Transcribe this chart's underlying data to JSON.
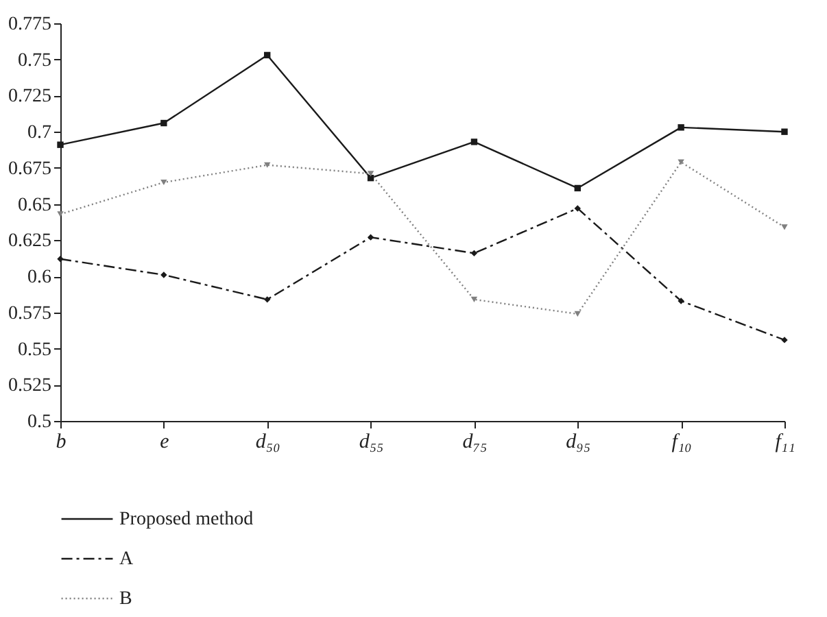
{
  "chart_data": {
    "type": "line",
    "categories": [
      "b",
      "e",
      "d₅₀",
      "d₅₅",
      "d₇₅",
      "d₉₅",
      "f₁₀",
      "f₁₁"
    ],
    "series": [
      {
        "name": "Proposed method",
        "color": "#1a1a1a",
        "values": [
          0.691,
          0.706,
          0.753,
          0.668,
          0.693,
          0.661,
          0.703,
          0.7
        ],
        "marker": "square",
        "line_style": "solid"
      },
      {
        "name": "A",
        "color": "#1a1a1a",
        "values": [
          0.612,
          0.601,
          0.584,
          0.627,
          0.616,
          0.647,
          0.583,
          0.556
        ],
        "marker": "diamond",
        "line_style": "dashed"
      },
      {
        "name": "B",
        "color": "#808080",
        "values": [
          0.643,
          0.665,
          0.677,
          0.671,
          0.584,
          0.574,
          0.679,
          0.634
        ],
        "marker": "triangle",
        "line_style": "dotted"
      }
    ],
    "ylim": [
      0.5,
      0.775
    ],
    "yticks": [
      0.5,
      0.525,
      0.55,
      0.575,
      0.6,
      0.625,
      0.65,
      0.675,
      0.7,
      0.725,
      0.75,
      0.775
    ],
    "grid": false,
    "legend": "bottom left"
  }
}
